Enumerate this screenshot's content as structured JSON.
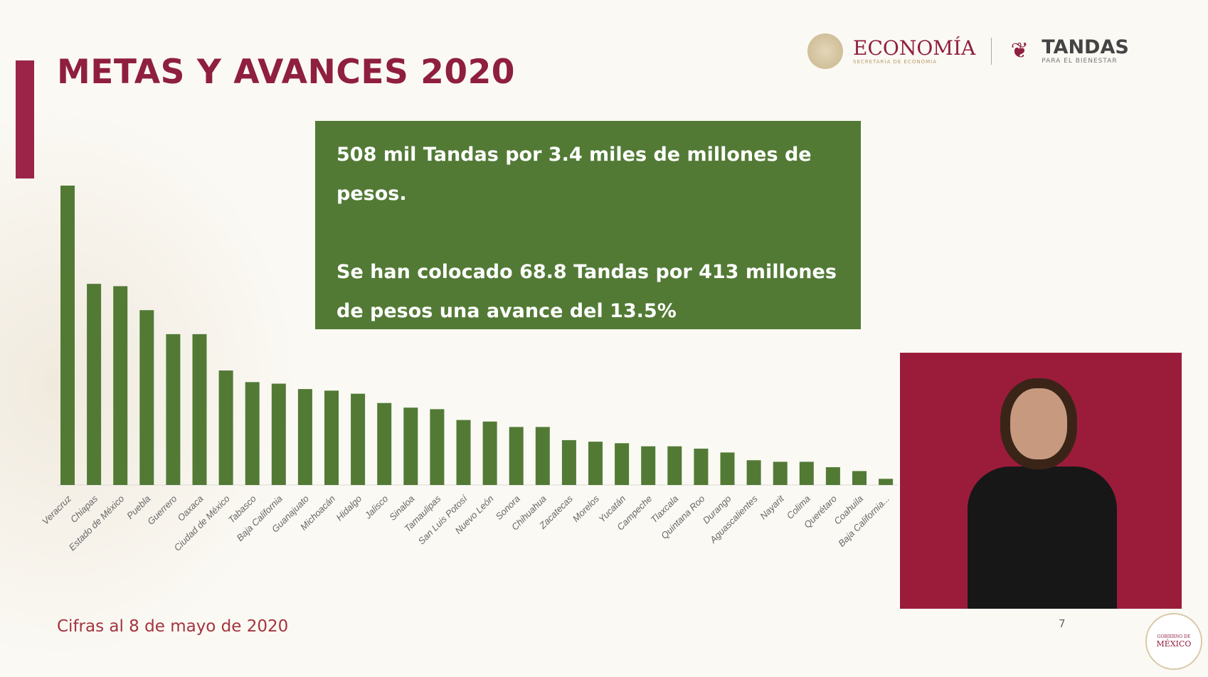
{
  "slide": {
    "title": "METAS Y AVANCES 2020",
    "footer": "Cifras al 8 de mayo de 2020",
    "page_number": "7",
    "accent_color": "#9d2449",
    "bar_color": "#527a35"
  },
  "logos": {
    "economia": "ECONOMÍA",
    "economia_sub": "SECRETARÍA DE ECONOMÍA",
    "tandas": "TANDAS",
    "tandas_sub": "PARA EL BIENESTAR",
    "gobierno_small": "GOBIERNO DE",
    "gobierno_big": "MÉXICO"
  },
  "infobox": {
    "line1": "508 mil Tandas  por 3.4 miles de millones de pesos.",
    "line2": "Se han colocado 68.8 Tandas por 413 millones de pesos una avance del 13.5%"
  },
  "chart_data": {
    "type": "bar",
    "title": "",
    "xlabel": "",
    "ylabel": "",
    "grid": false,
    "categories": [
      "Veracruz",
      "Chiapas",
      "Estado de México",
      "Puebla",
      "Guerrero",
      "Oaxaca",
      "Ciudad de México",
      "Tabasco",
      "Baja California",
      "Guanajuato",
      "Michoacán",
      "Hidalgo",
      "Jalisco",
      "Sinaloa",
      "Tamaulipas",
      "San Luis Potosí",
      "Nuevo León",
      "Sonora",
      "Chihuahua",
      "Zacatecas",
      "Morelos",
      "Yucatán",
      "Campeche",
      "Tlaxcala",
      "Quintana Roo",
      "Durango",
      "Aguascalientes",
      "Nayarit",
      "Colima",
      "Querétaro",
      "Coahuila",
      "Baja California..."
    ],
    "values": [
      387,
      260,
      257,
      226,
      195,
      195,
      148,
      133,
      131,
      124,
      122,
      118,
      106,
      100,
      98,
      84,
      82,
      75,
      75,
      58,
      56,
      54,
      50,
      50,
      47,
      42,
      32,
      30,
      30,
      23,
      18,
      8
    ]
  }
}
